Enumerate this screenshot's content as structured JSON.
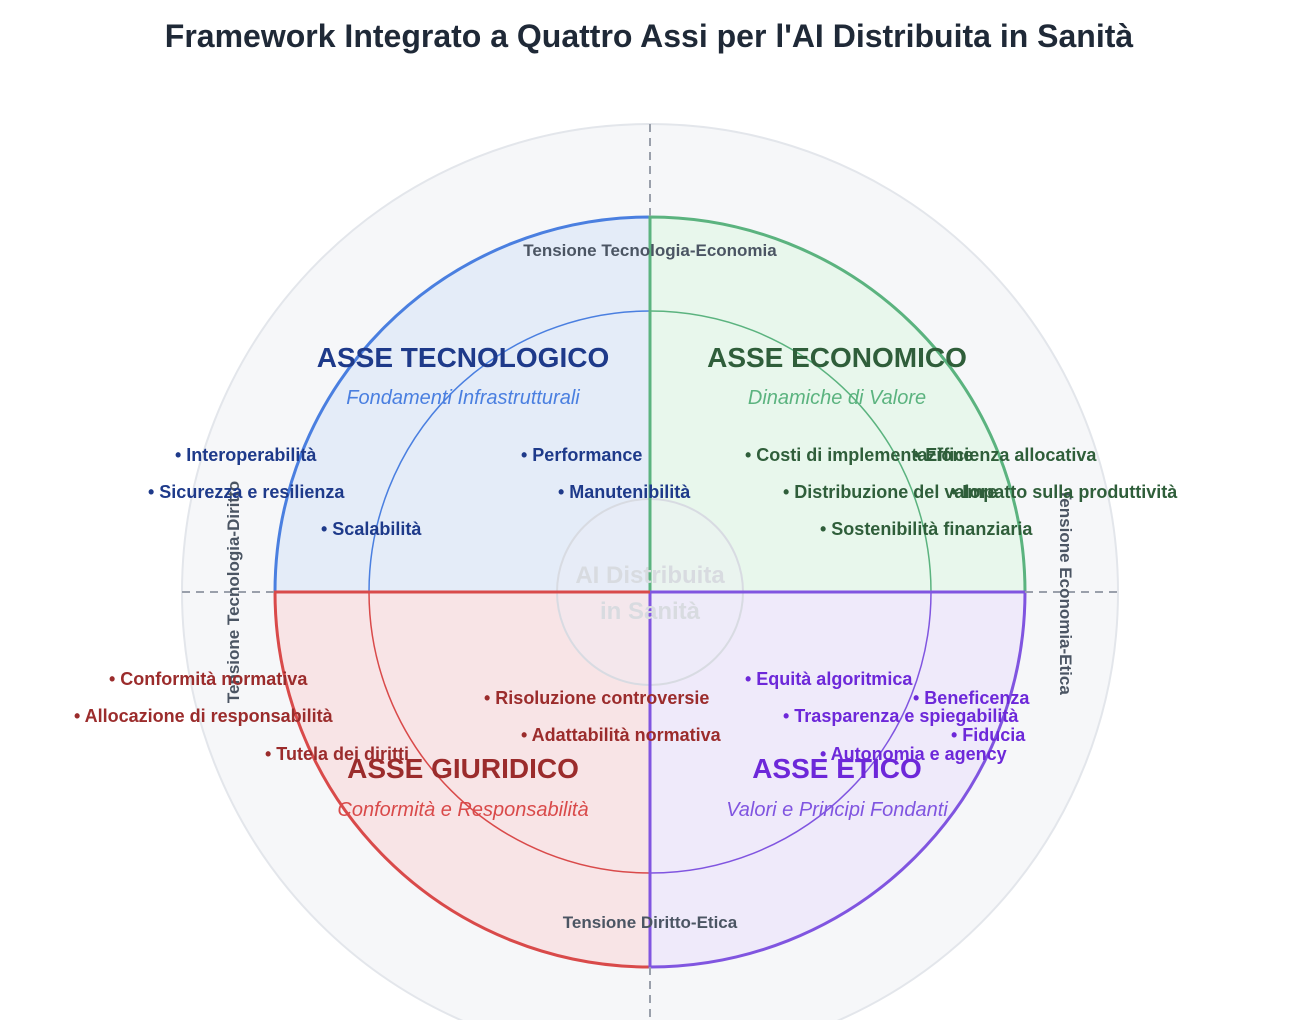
{
  "title": "Framework Integrato a Quattro Assi per l'AI Distribuita in Sanità",
  "center": {
    "line1": "AI Distribuita",
    "line2": "in Sanità"
  },
  "tensions": {
    "top": "Tensione Tecnologia-Economia",
    "bottom": "Tensione Diritto-Etica",
    "left": "Tensione Tecnologia-Diritto",
    "right": "Tensione Economia-Etica"
  },
  "axes": {
    "tech": {
      "title": "ASSE TECNOLOGICO",
      "subtitle": "Fondamenti Infrastrutturali",
      "color": "#1e3a8a",
      "stroke": "#3b82f6",
      "items": [
        "• Interoperabilità",
        "• Sicurezza e resilienza",
        "• Scalabilità",
        "• Performance",
        "• Manutenibilità"
      ]
    },
    "econ": {
      "title": "ASSE ECONOMICO",
      "subtitle": "Dinamiche di Valore",
      "color": "#2f5e3a",
      "stroke": "#4caf73",
      "items": [
        "• Costi di implementazione",
        "• Distribuzione del valore",
        "• Sostenibilità finanziaria",
        "• Efficienza allocativa",
        "• Impatto sulla produttività"
      ]
    },
    "legal": {
      "title": "ASSE GIURIDICO",
      "subtitle": "Conformità e Responsabilità",
      "color": "#9b2c2c",
      "stroke": "#e04848",
      "items": [
        "• Conformità normativa",
        "• Allocazione di responsabilità",
        "• Tutela dei diritti",
        "• Risoluzione controversie",
        "• Adattabilità normativa"
      ]
    },
    "ethic": {
      "title": "ASSE ETICO",
      "subtitle": "Valori e Principi Fondanti",
      "color": "#6d28d9",
      "stroke": "#8b5cf6",
      "items": [
        "• Equità algoritmica",
        "• Trasparenza e spiegabilità",
        "• Autonomia e agency",
        "• Beneficenza",
        "• Fiducia"
      ]
    }
  }
}
